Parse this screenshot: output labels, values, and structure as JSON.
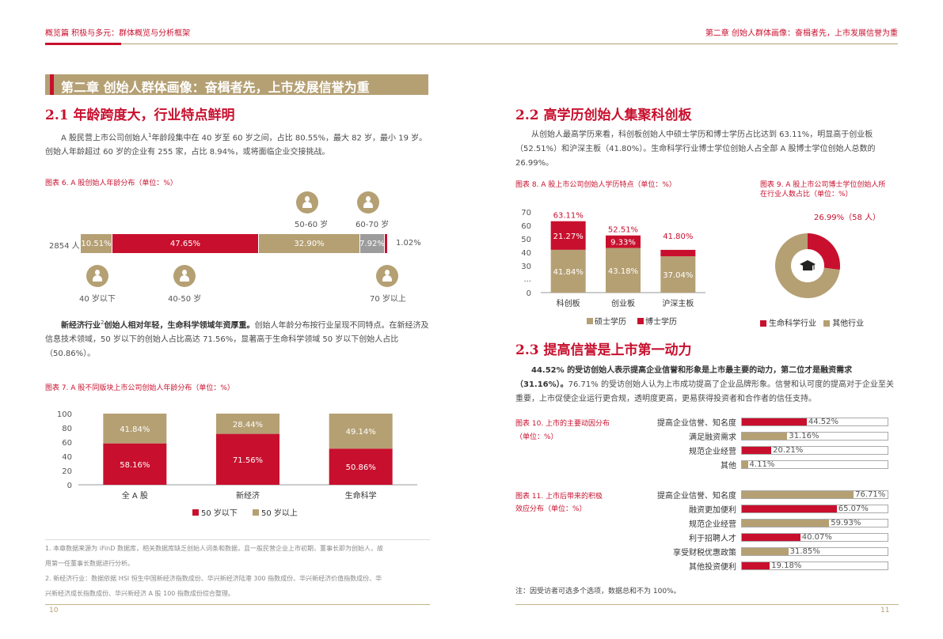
{
  "header": {
    "left": "概览篇  积极与多元：群体概览与分析框架",
    "right": "第二章  创始人群体画像：奋楫者先，上市发展信誉为重"
  },
  "chapter_banner": "第二章  创始人群体画像：奋楫者先，上市发展信誉为重",
  "s21": {
    "title": "2.1  年龄跨度大，行业特点鲜明",
    "para_pre": "A 股民营上市公司创始人",
    "para_sup": "1",
    "para_post": "年龄段集中在 40 岁至 60 岁之间，占比 80.55%，最大 82 岁，最小 19 岁。创始人年龄超过 60 岁的企业有 255 家，占比 8.94%，或将面临企业交接挑战。",
    "fig6_caption": "图表 6. A 股创始人年龄分布（单位：%）",
    "fig6": {
      "total_label": "2854 人",
      "segments": [
        {
          "label": "10.51%",
          "value": 10.51,
          "color": "#b5a074"
        },
        {
          "label": "47.65%",
          "value": 47.65,
          "color": "#c8102e"
        },
        {
          "label": "32.90%",
          "value": 32.9,
          "color": "#b5a074"
        },
        {
          "label": "7.92%",
          "value": 7.92,
          "color": "#9c9c9c"
        },
        {
          "label": "1.02%",
          "value": 1.02,
          "color": "#c8102e"
        }
      ],
      "age_labels": {
        "under40": "40 岁以下",
        "a40_50": "40-50 岁",
        "a50_60": "50-60 岁",
        "a60_70": "60-70 岁",
        "over70": "70 岁以上"
      },
      "icons": [
        "person-icon"
      ]
    },
    "para2_bold_pre": "新经济行业",
    "para2_sup": "2",
    "para2_bold_post": "创始人相对年轻，生命科学领域年资厚重。",
    "para2_rest": "创始人年龄分布按行业呈现不同特点。在新经济及信息技术领域，50 岁以下的创始人占比高达 71.56%，显著高于生命科学领域 50 岁以下创始人占比（50.86%）。",
    "fig7_caption": "图表 7. A 股不同版块上市公司创始人年龄分布（单位：%）"
  },
  "s22": {
    "title": "2.2  高学历创始人集聚科创板",
    "para": "从创始人最高学历来看，科创板创始人中硕士学历和博士学历占比达到 63.11%，明显高于创业板（52.51%）和沪深主板（41.80%）。生命科学行业博士学位创始人占全部 A 股博士学位创始人总数的 26.99%。",
    "fig8_caption": "图表 8. A 股上市公司创始人学历特点（单位：%）",
    "fig9_caption_l1": "图表 9. A 股上市公司博士学位创始人所",
    "fig9_caption_l2": "在行业人数占比（单位：%）",
    "donut_label": "26.99%（58 人）",
    "donut_legend": [
      "生命科学行业",
      "其他行业"
    ]
  },
  "s23": {
    "title": "2.3  提高信誉是上市第一动力",
    "para_bold": "44.52% 的受访创始人表示提高企业信誉和形象是上市最主要的动力，第二位才是融资需求（31.16%）。",
    "para_rest": "76.71% 的受访创始人认为上市成功提高了企业品牌形象。信誉和认可度的提高对于企业至关重要，上市促使企业运行更合规，透明度更高，更易获得投资者和合作者的信任支持。",
    "fig10_caption_l1": "图表 10. 上市的主要动因分布",
    "fig10_caption_l2": "（单位：%）",
    "fig11_caption_l1": "图表 11. 上市后带来的积极",
    "fig11_caption_l2": "效应分布（单位：%）",
    "note": "注：因受访者可选多个选项，数据总和不为 100%。"
  },
  "footnotes": [
    "1. 本章数据来源为 iFinD 数据库，相关数据库缺乏创始人词条和数据，且一般民营企业上市初期，董事长即为创始人，故",
    "用第一任董事长数据进行分析。",
    "2. 新经济行业：数据依据 HSI 恒生中国新经济指数成份、华兴新经济陆港 300 指数成份、华兴新经济价值指数成份、华",
    "兴新经济成长指数成份、华兴新经济 A 股 100 指数成份综合整理。"
  ],
  "page_numbers": {
    "left": "10",
    "right": "11"
  },
  "colors": {
    "red": "#c8102e",
    "gold": "#b5a074",
    "gray": "#9c9c9c"
  },
  "chart_data": [
    {
      "type": "bar",
      "id": "fig7",
      "stacked": true,
      "categories": [
        "全 A 股",
        "新经济",
        "生命科学"
      ],
      "series": [
        {
          "name": "50 岁以下",
          "values": [
            58.16,
            71.56,
            50.86
          ],
          "labels": [
            "58.16%",
            "71.56%",
            "50.86%"
          ],
          "color": "#c8102e"
        },
        {
          "name": "50 岁以上",
          "values": [
            41.84,
            28.44,
            49.14
          ],
          "labels": [
            "41.84%",
            "28.44%",
            "49.14%"
          ],
          "color": "#b5a074"
        }
      ],
      "yticks": [
        "0",
        "20",
        "40",
        "60",
        "80",
        "100"
      ],
      "ylim": [
        0,
        100
      ],
      "legend": "bottom"
    },
    {
      "type": "bar",
      "id": "fig8",
      "stacked": true,
      "categories": [
        "科创板",
        "创业板",
        "沪深主板"
      ],
      "series": [
        {
          "name": "硕士学历",
          "values": [
            41.84,
            43.18,
            37.04
          ],
          "labels": [
            "41.84%",
            "43.18%",
            "37.04%"
          ],
          "color": "#b5a074"
        },
        {
          "name": "博士学历",
          "values": [
            21.27,
            9.33,
            4.76
          ],
          "labels": [
            "21.27%",
            "9.33%",
            "4.76%"
          ],
          "color": "#c8102e"
        }
      ],
      "totals": [
        "63.11%",
        "52.51%",
        "41.80%"
      ],
      "yticks": [
        "0",
        "...",
        "30",
        "40",
        "50",
        "60",
        "70"
      ],
      "ylim": [
        0,
        70
      ],
      "legend": "bottom"
    },
    {
      "type": "pie",
      "id": "fig9",
      "donut": true,
      "categories": [
        "生命科学行业",
        "其他行业"
      ],
      "values": [
        26.99,
        73.01
      ],
      "colors": [
        "#c8102e",
        "#b5a074"
      ],
      "icon": "graduation-cap-icon"
    },
    {
      "type": "bar",
      "id": "fig10",
      "orientation": "horizontal",
      "categories": [
        "提高企业信誉、知名度",
        "满足融资需求",
        "规范企业经营",
        "其他"
      ],
      "values": [
        44.52,
        31.16,
        20.21,
        4.11
      ],
      "labels": [
        "44.52%",
        "31.16%",
        "20.21%",
        "4.11%"
      ],
      "xlim": [
        0,
        100
      ]
    },
    {
      "type": "bar",
      "id": "fig11",
      "orientation": "horizontal",
      "categories": [
        "提高企业信誉、知名度",
        "融资更加便利",
        "规范企业经营",
        "利于招聘人才",
        "享受财税优惠政策",
        "其他投资便利"
      ],
      "values": [
        76.71,
        65.07,
        59.93,
        40.07,
        31.85,
        19.18
      ],
      "labels": [
        "76.71%",
        "65.07%",
        "59.93%",
        "40.07%",
        "31.85%",
        "19.18%"
      ],
      "xlim": [
        0,
        100
      ]
    }
  ]
}
